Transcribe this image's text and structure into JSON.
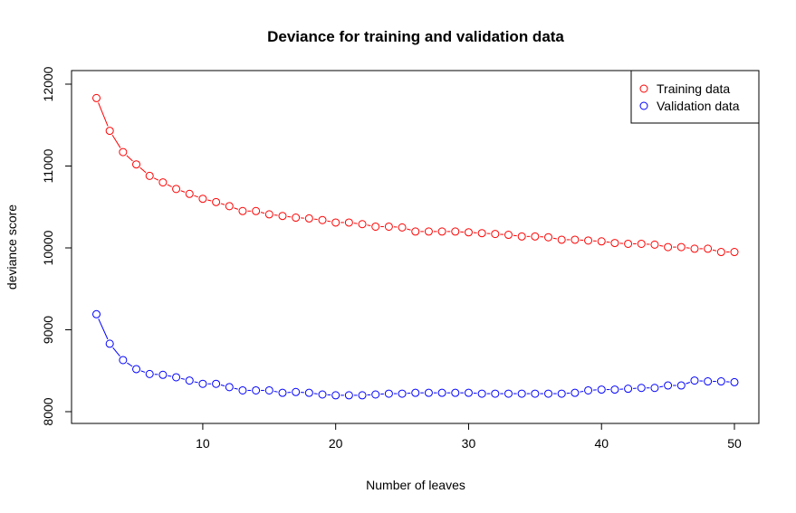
{
  "chart_data": {
    "type": "line",
    "title": "Deviance for training and validation data",
    "xlabel": "Number of leaves",
    "ylabel": "deviance score",
    "xlim": [
      2,
      50
    ],
    "ylim": [
      8000,
      12000
    ],
    "x_ticks": [
      10,
      20,
      30,
      40,
      50
    ],
    "y_ticks": [
      8000,
      9000,
      10000,
      11000,
      12000
    ],
    "grid": false,
    "legend_position": "top-right",
    "x": [
      2,
      3,
      4,
      5,
      6,
      7,
      8,
      9,
      10,
      11,
      12,
      13,
      14,
      15,
      16,
      17,
      18,
      19,
      20,
      21,
      22,
      23,
      24,
      25,
      26,
      27,
      28,
      29,
      30,
      31,
      32,
      33,
      34,
      35,
      36,
      37,
      38,
      39,
      40,
      41,
      42,
      43,
      44,
      45,
      46,
      47,
      48,
      49,
      50
    ],
    "series": [
      {
        "name": "Training data",
        "color": "#ff0000",
        "values": [
          11830,
          11430,
          11170,
          11020,
          10880,
          10800,
          10720,
          10660,
          10600,
          10560,
          10510,
          10450,
          10450,
          10410,
          10390,
          10370,
          10360,
          10340,
          10310,
          10310,
          10290,
          10260,
          10260,
          10250,
          10200,
          10200,
          10200,
          10200,
          10190,
          10180,
          10170,
          10160,
          10140,
          10140,
          10130,
          10100,
          10100,
          10090,
          10080,
          10060,
          10050,
          10050,
          10040,
          10010,
          10010,
          9990,
          9990,
          9950,
          9950
        ]
      },
      {
        "name": "Validation data",
        "color": "#0000ff",
        "values": [
          9190,
          8830,
          8630,
          8520,
          8460,
          8450,
          8420,
          8380,
          8340,
          8340,
          8300,
          8260,
          8260,
          8260,
          8230,
          8240,
          8230,
          8210,
          8200,
          8200,
          8200,
          8210,
          8220,
          8220,
          8230,
          8230,
          8230,
          8230,
          8230,
          8220,
          8220,
          8220,
          8220,
          8220,
          8220,
          8220,
          8230,
          8260,
          8270,
          8270,
          8280,
          8290,
          8290,
          8320,
          8320,
          8380,
          8370,
          8370,
          8360
        ]
      }
    ]
  }
}
